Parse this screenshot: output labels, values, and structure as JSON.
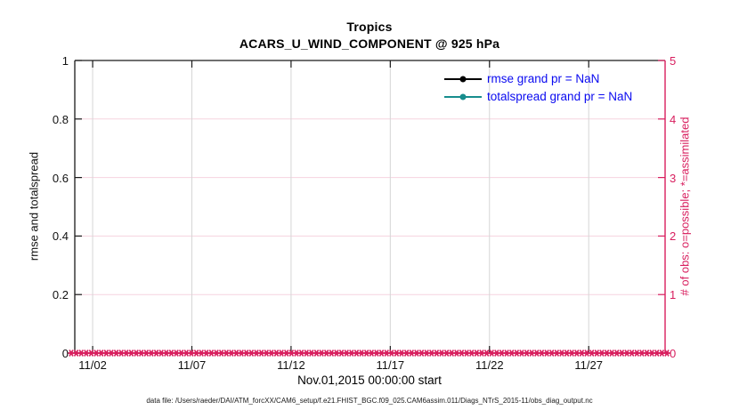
{
  "chart": {
    "title": "Tropics",
    "subtitle": "ACARS_U_WIND_COMPONENT @ 925 hPa",
    "xlabel": "Nov.01,2015 00:00:00 start",
    "ylabel_left": "rmse and totalspread",
    "ylabel_right": "# of obs: o=possible; *=assimilated",
    "footer": "data file: /Users/raeder/DAI/ATM_forcXX/CAM6_setup/f.e21.FHIST_BGC.f09_025.CAM6assim.011/Diags_NTrS_2015-11/obs_diag_output.nc",
    "legend": [
      {
        "label": "rmse grand pr = NaN",
        "color": "#000000"
      },
      {
        "label": "totalspread grand pr = NaN",
        "color": "#178d8d"
      }
    ],
    "colors": {
      "right_axis": "#d81e5e",
      "legend_text": "#0a0af0",
      "grid_vertical": "#d6d6d6",
      "grid_horizontal": "#f6d3df",
      "axis_black": "#1a1a1a",
      "teal_series": "#178d8d"
    }
  },
  "chart_data": {
    "type": "line",
    "title": "Tropics",
    "subtitle": "ACARS_U_WIND_COMPONENT @ 925 hPa",
    "xlabel": "Nov.01,2015 00:00:00 start",
    "x_tick_labels": [
      "11/02",
      "11/07",
      "11/12",
      "11/17",
      "11/22",
      "11/27"
    ],
    "x_tick_days": [
      1,
      6,
      11,
      16,
      21,
      26
    ],
    "x_range_days": [
      0.1,
      29.85
    ],
    "left_axis": {
      "label": "rmse and totalspread",
      "ticks": [
        0,
        0.2,
        0.4,
        0.6,
        0.8,
        1
      ],
      "tick_labels": [
        "0",
        "0.2",
        "0.4",
        "0.6",
        "0.8",
        "1"
      ],
      "range": [
        0,
        1
      ]
    },
    "right_axis": {
      "label": "# of obs: o=possible; *=assimilated",
      "ticks": [
        0,
        1,
        2,
        3,
        4,
        5
      ],
      "tick_labels": [
        "0",
        "1",
        "2",
        "3",
        "4",
        "5"
      ],
      "range": [
        0,
        5
      ]
    },
    "grid": {
      "vertical": true,
      "horizontal": true
    },
    "legend_position": "upper-right-inside",
    "series": [
      {
        "name": "rmse grand pr = NaN",
        "type": "line",
        "marker": "dot",
        "color": "#000000",
        "values": null,
        "note": "all values NaN - no line drawn"
      },
      {
        "name": "totalspread grand pr = NaN",
        "type": "line",
        "marker": "dot",
        "color": "#178d8d",
        "values": null,
        "note": "all values NaN - no line drawn"
      },
      {
        "name": "# of obs possible (o)",
        "axis": "right",
        "marker": "o",
        "color": "#d81e5e",
        "constant_value": 0
      },
      {
        "name": "# of obs assimilated (*)",
        "axis": "right",
        "marker": "*",
        "color": "#d81e5e",
        "constant_value": 0
      }
    ],
    "obs_band": {
      "n_bins": 120,
      "value": 0,
      "color": "#d81e5e",
      "comment": "dense * markers along y=0 for every 6-hourly bin of Nov 2015"
    }
  }
}
